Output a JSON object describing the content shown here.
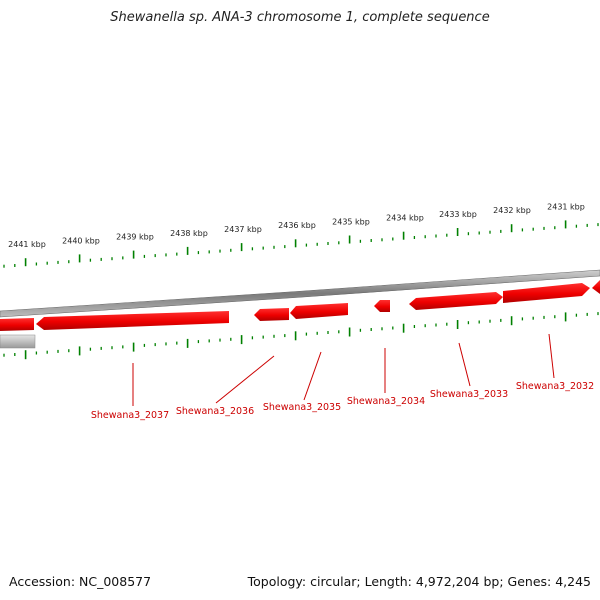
{
  "header": {
    "title": "Shewanella sp. ANA-3 chromosome 1, complete sequence"
  },
  "footer": {
    "accession": "Accession: NC_008577",
    "summary": "Topology: circular; Length: 4,972,204 bp; Genes: 4,245"
  },
  "map": {
    "track_color": "#888888",
    "gene_color": "#ff0000",
    "tick_color": "#008000",
    "label_color": "#cc0000",
    "scale_labels": [
      "2441 kbp",
      "2440 kbp",
      "2439 kbp",
      "2438 kbp",
      "2437 kbp",
      "2436 kbp",
      "2435 kbp",
      "2434 kbp",
      "2433 kbp",
      "2432 kbp",
      "2431 kbp"
    ],
    "gene_labels": [
      "Shewana3_2037",
      "Shewana3_2036",
      "Shewana3_2035",
      "Shewana3_2034",
      "Shewana3_2033",
      "Shewana3_2032"
    ]
  }
}
